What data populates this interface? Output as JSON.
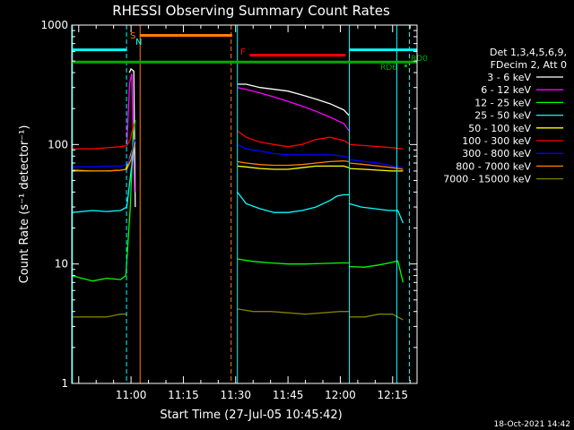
{
  "chart_data": {
    "type": "line",
    "title": "RHESSI Observing Summary Count Rates",
    "xlabel": "Start Time (27-Jul-05 10:45:42)",
    "ylabel": "Count Rate (s⁻¹ detector⁻¹)",
    "yscale": "log",
    "ylim": [
      1,
      1000
    ],
    "xlim_minutes": [
      -2,
      97
    ],
    "x_ticks": [
      {
        "minute": 15,
        "label": "11:00"
      },
      {
        "minute": 30,
        "label": "11:15"
      },
      {
        "minute": 45,
        "label": "11:30"
      },
      {
        "minute": 60,
        "label": "11:45"
      },
      {
        "minute": 75,
        "label": "12:00"
      },
      {
        "minute": 90,
        "label": "12:15"
      }
    ],
    "y_ticks": [
      {
        "value": 1,
        "label": "1"
      },
      {
        "value": 10,
        "label": "10"
      },
      {
        "value": 100,
        "label": "100"
      },
      {
        "value": 1000,
        "label": "1000"
      }
    ],
    "legend_header": [
      "Det 1,3,4,5,6,9,",
      "FDecim 2, Att 0"
    ],
    "legend_placement": "right",
    "series": [
      {
        "name": "3 - 6 keV",
        "color": "#ffffff",
        "segments": [
          {
            "x": [
              14.5,
              15,
              15.8,
              16.2
            ],
            "y": [
              400,
              430,
              410,
              30
            ]
          },
          {
            "x": [
              45.5,
              48,
              52,
              56,
              60,
              64,
              68,
              72,
              76,
              77.5
            ],
            "y": [
              320,
              320,
              300,
              290,
              280,
              260,
              240,
              220,
              195,
              175
            ]
          }
        ]
      },
      {
        "name": "6 - 12 keV",
        "color": "#ff00ff",
        "segments": [
          {
            "x": [
              13.8,
              14.6,
              15.2,
              16.0
            ],
            "y": [
              100,
              330,
              390,
              40
            ]
          },
          {
            "x": [
              45.5,
              48,
              52,
              56,
              60,
              64,
              68,
              72,
              76,
              77.5
            ],
            "y": [
              300,
              290,
              270,
              250,
              230,
              210,
              190,
              170,
              150,
              130
            ]
          }
        ]
      },
      {
        "name": "12 - 25 keV",
        "color": "#00ff00",
        "segments": [
          {
            "x": [
              -2,
              4,
              8,
              12,
              13.5,
              14.8,
              15.6,
              16.2
            ],
            "y": [
              8,
              7.2,
              7.6,
              7.4,
              8,
              30,
              120,
              160
            ]
          },
          {
            "x": [
              45.5,
              50,
              55,
              60,
              65,
              70,
              75,
              77.5
            ],
            "y": [
              11,
              10.5,
              10.2,
              10,
              10,
              10.1,
              10.2,
              10.2
            ]
          },
          {
            "x": [
              77.5,
              82,
              86,
              89,
              91.5,
              93
            ],
            "y": [
              9.5,
              9.4,
              9.8,
              10.2,
              10.6,
              7
            ]
          }
        ]
      },
      {
        "name": "25 - 50 keV",
        "color": "#00ffff",
        "segments": [
          {
            "x": [
              -2,
              4,
              8,
              12,
              13.8,
              15,
              16
            ],
            "y": [
              27,
              28,
              27.5,
              28,
              30,
              60,
              100
            ]
          },
          {
            "x": [
              45.5,
              48,
              52,
              56,
              60,
              64,
              68,
              72,
              74,
              76,
              77.5
            ],
            "y": [
              40,
              32,
              29,
              27,
              27,
              28,
              30,
              34,
              37,
              38,
              38
            ]
          },
          {
            "x": [
              77.5,
              81,
              85,
              89,
              91.5,
              93
            ],
            "y": [
              32,
              30,
              29,
              28,
              28,
              22
            ]
          }
        ]
      },
      {
        "name": "50 - 100 keV",
        "color": "#ffff00",
        "segments": [
          {
            "x": [
              -2,
              4,
              8,
              12,
              13.5,
              14.8,
              15.8
            ],
            "y": [
              61,
              60,
              60,
              61,
              62,
              80,
              100
            ]
          },
          {
            "x": [
              45.5,
              48,
              52,
              56,
              60,
              64,
              68,
              72,
              76,
              77.5
            ],
            "y": [
              66,
              65,
              63,
              62,
              62,
              64,
              66,
              66,
              66,
              64
            ]
          },
          {
            "x": [
              77.5,
              82,
              86,
              90,
              93
            ],
            "y": [
              63,
              62,
              61,
              60,
              60
            ]
          }
        ]
      },
      {
        "name": "100 - 300 keV",
        "color": "#ff0000",
        "segments": [
          {
            "x": [
              -2,
              4,
              8,
              12,
              13.8,
              14.8,
              15.8
            ],
            "y": [
              92,
              92,
              94,
              96,
              98,
              110,
              150
            ]
          },
          {
            "x": [
              45.5,
              48,
              52,
              56,
              60,
              64,
              68,
              72,
              76,
              77.5
            ],
            "y": [
              130,
              115,
              105,
              100,
              96,
              100,
              110,
              115,
              108,
              102
            ]
          },
          {
            "x": [
              77.5,
              82,
              86,
              90,
              93
            ],
            "y": [
              100,
              98,
              96,
              94,
              92
            ]
          }
        ]
      },
      {
        "name": "300 - 800 keV",
        "color": "#0000ff",
        "segments": [
          {
            "x": [
              -2,
              4,
              8,
              12,
              13.8,
              15,
              16
            ],
            "y": [
              65,
              65,
              66,
              66,
              68,
              80,
              110
            ]
          },
          {
            "x": [
              45.5,
              48,
              52,
              56,
              60,
              64,
              68,
              72,
              76,
              77.5
            ],
            "y": [
              100,
              92,
              88,
              84,
              82,
              82,
              82,
              82,
              80,
              78
            ]
          },
          {
            "x": [
              77.5,
              82,
              86,
              90,
              93
            ],
            "y": [
              75,
              72,
              70,
              66,
              64
            ]
          }
        ]
      },
      {
        "name": "800 - 7000 keV",
        "color": "#ff8000",
        "segments": [
          {
            "x": [
              -2,
              4,
              8,
              12,
              13.8,
              15,
              16
            ],
            "y": [
              60,
              60,
              60,
              61,
              62,
              75,
              100
            ]
          },
          {
            "x": [
              45.5,
              48,
              52,
              56,
              60,
              64,
              68,
              72,
              76,
              77.5
            ],
            "y": [
              72,
              70,
              68,
              67,
              67,
              68,
              70,
              72,
              73,
              72
            ]
          },
          {
            "x": [
              77.5,
              82,
              86,
              90,
              93
            ],
            "y": [
              70,
              68,
              66,
              64,
              62
            ]
          }
        ]
      },
      {
        "name": "7000 - 15000 keV",
        "color": "#808000",
        "segments": [
          {
            "x": [
              -2,
              4,
              8,
              12,
              13.8
            ],
            "y": [
              3.6,
              3.6,
              3.6,
              3.8,
              3.8
            ]
          },
          {
            "x": [
              45.5,
              50,
              55,
              60,
              65,
              70,
              75,
              77.5
            ],
            "y": [
              4.2,
              4.0,
              4.0,
              3.9,
              3.8,
              3.9,
              4.0,
              4.0
            ]
          },
          {
            "x": [
              77.5,
              82,
              86,
              90,
              93
            ],
            "y": [
              3.6,
              3.6,
              3.8,
              3.8,
              3.4
            ]
          }
        ]
      }
    ],
    "annotations": [
      {
        "label": "S",
        "color": "#ff8000"
      },
      {
        "label": "N",
        "color": "#00ffff"
      },
      {
        "label": "F",
        "color": "#ff0000"
      },
      {
        "label": "RD0",
        "color": "#00aa00"
      },
      {
        "label": "RD6",
        "color": "#00aa00"
      }
    ],
    "flags": [
      {
        "name": "attenuator-cyan",
        "color": "#00ffff",
        "y": 620,
        "ranges": [
          [
            -2,
            13.8
          ],
          [
            77.5,
            97
          ]
        ]
      },
      {
        "name": "saa-orange",
        "color": "#ff8000",
        "y": 820,
        "ranges": [
          [
            17.5,
            44
          ]
        ]
      },
      {
        "name": "flare-red",
        "color": "#ff0000",
        "y": 560,
        "ranges": [
          [
            49,
            76.5
          ]
        ]
      },
      {
        "name": "rd0-green",
        "color": "#00aa00",
        "y": 490,
        "ranges": [
          [
            -2,
            97
          ]
        ]
      }
    ],
    "vlines": [
      {
        "name": "cyan-solid",
        "color": "#00ffff",
        "style": "solid",
        "minute": -1.8
      },
      {
        "name": "cyan-dashed",
        "color": "#00ffff",
        "style": "dashed",
        "minute": 13.7
      },
      {
        "name": "orange-solid",
        "color": "#ff8000",
        "style": "solid",
        "minute": 17.6
      },
      {
        "name": "orange-dashed",
        "color": "#ff8000",
        "style": "dashed",
        "minute": 43.7
      },
      {
        "name": "cyan-solid",
        "color": "#00ffff",
        "style": "solid",
        "minute": 45.5
      },
      {
        "name": "cyan-solid",
        "color": "#00ffff",
        "style": "solid",
        "minute": 77.6
      },
      {
        "name": "cyan-solid",
        "color": "#00ffff",
        "style": "solid",
        "minute": 91.2
      },
      {
        "name": "cyan-dashed",
        "color": "#00ffff",
        "style": "dashed",
        "minute": 94.8
      }
    ],
    "footer_date": "18-Oct-2021 14:42"
  }
}
